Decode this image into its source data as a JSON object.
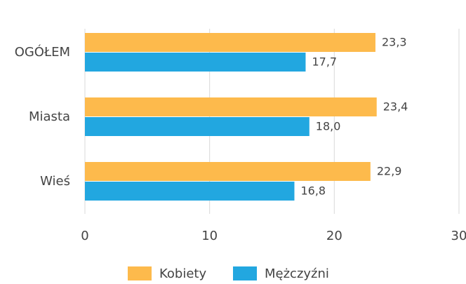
{
  "chart_data": {
    "type": "barh",
    "categories": [
      "OGÓŁEM",
      "Miasta",
      "Wieś"
    ],
    "series": [
      {
        "name": "Kobiety",
        "color": "#fdba4c",
        "values": [
          23.3,
          23.4,
          22.9
        ],
        "value_labels": [
          "23,3",
          "23,4",
          "22,9"
        ]
      },
      {
        "name": "Mężczyźni",
        "color": "#22a7e0",
        "values": [
          17.7,
          18.0,
          16.8
        ],
        "value_labels": [
          "17,7",
          "18,0",
          "16,8"
        ]
      }
    ],
    "xlim": [
      0,
      30
    ],
    "xticks": [
      0,
      10,
      20,
      30
    ],
    "grid": true,
    "legend": "bottom"
  }
}
